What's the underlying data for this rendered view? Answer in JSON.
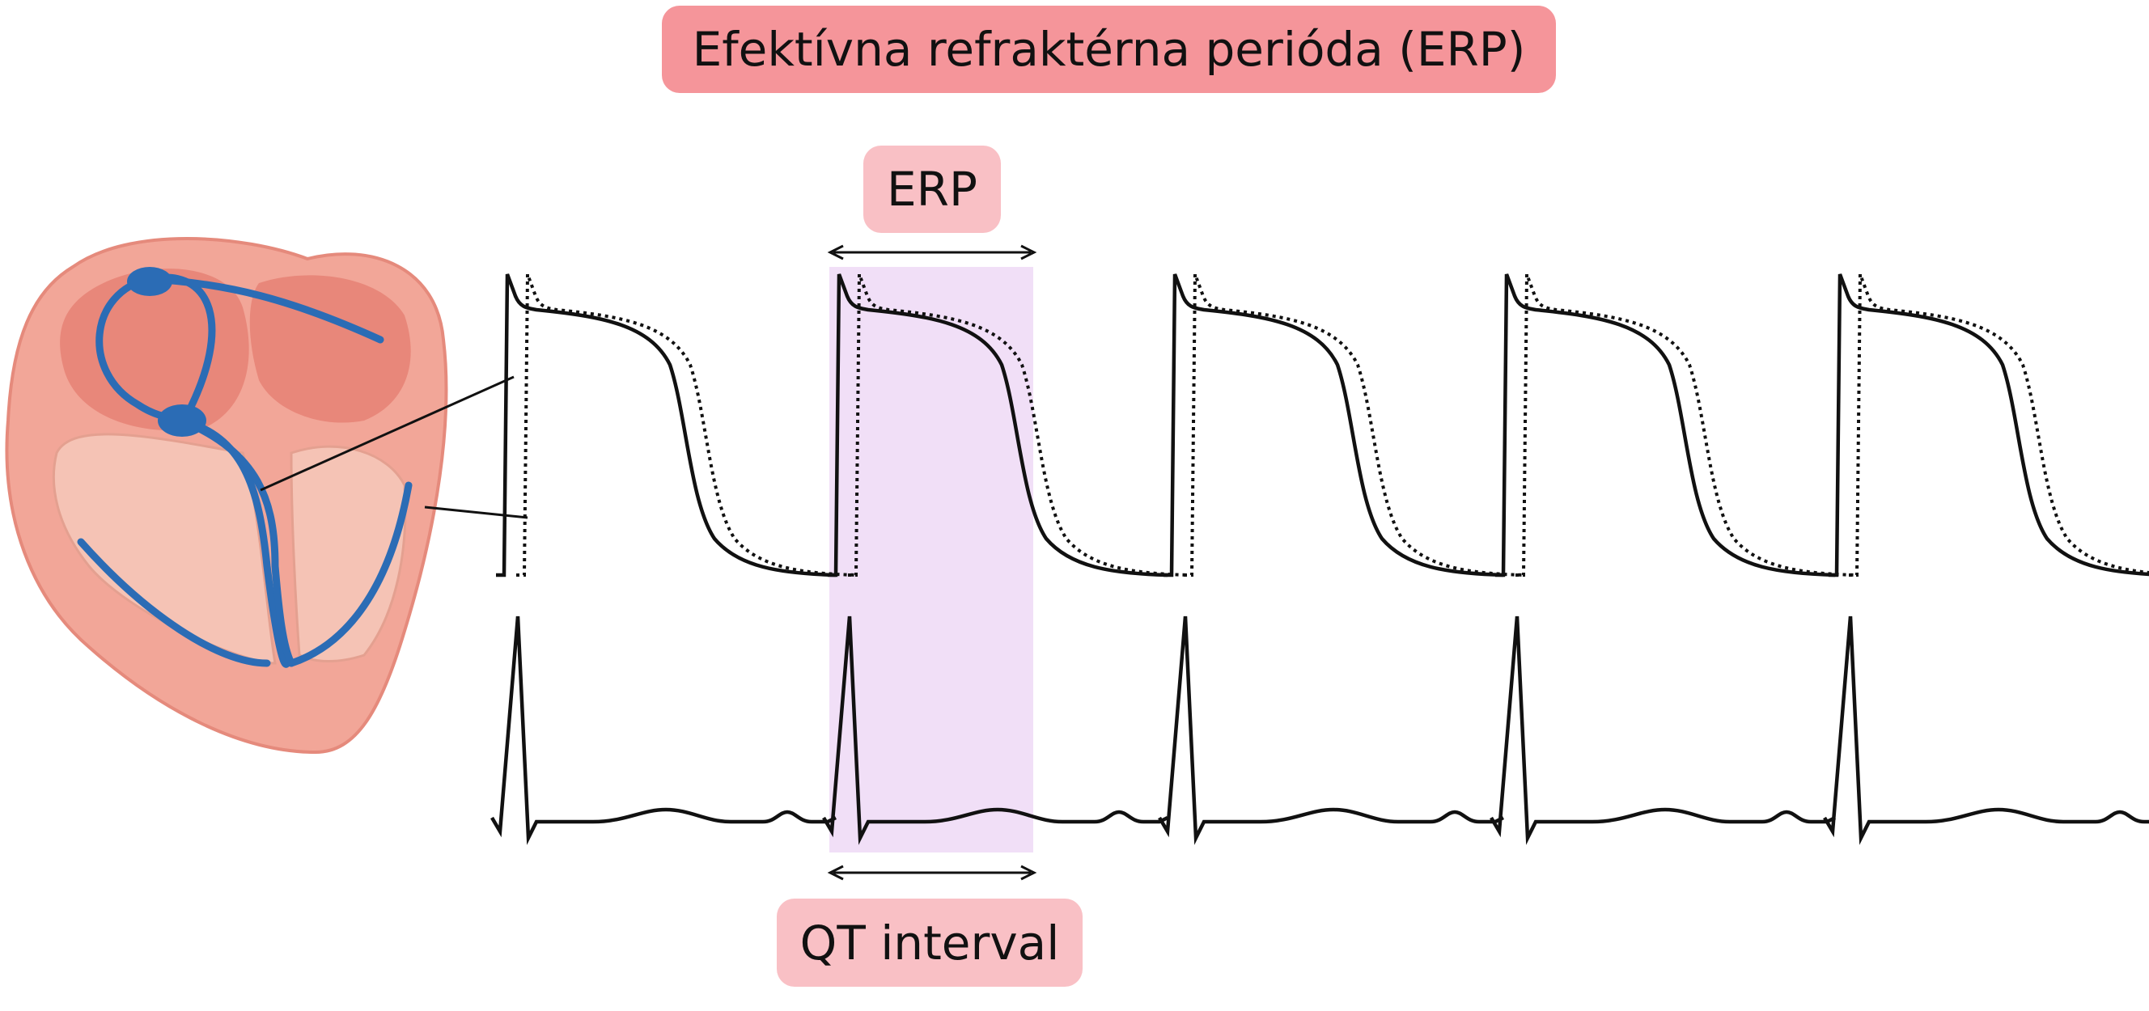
{
  "title": "Efektívna refraktérna perióda (ERP)",
  "labels": {
    "erp": "ERP",
    "qt": "QT interval"
  }
}
